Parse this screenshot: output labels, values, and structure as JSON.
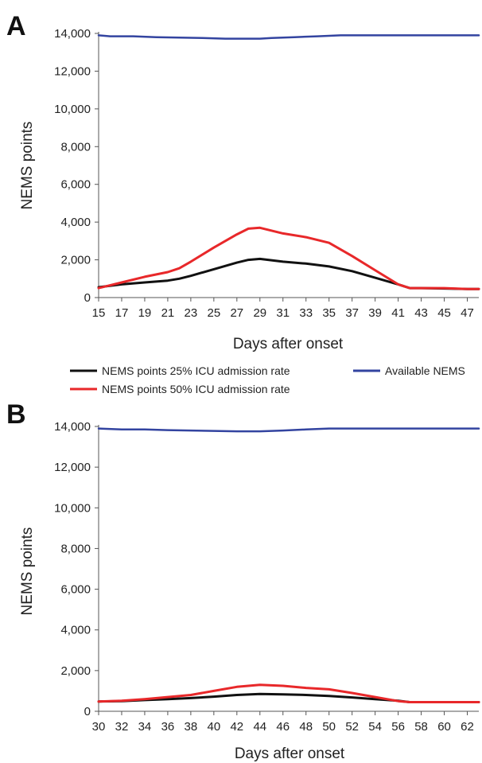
{
  "figure": {
    "legend": [
      {
        "label": "NEMS points 25% ICU admission rate",
        "color": "#111111"
      },
      {
        "label": "Available NEMS",
        "color": "#3344a0"
      },
      {
        "label": "NEMS points 50% ICU admission rate",
        "color": "#e8282a"
      }
    ]
  },
  "chart_data": [
    {
      "panel": "A",
      "type": "line",
      "xlabel": "Days after onset",
      "ylabel": "NEMS points",
      "xlim": [
        15,
        48
      ],
      "ylim": [
        0,
        14000
      ],
      "xticks": [
        "15",
        "17",
        "19",
        "21",
        "23",
        "25",
        "27",
        "29",
        "31",
        "33",
        "35",
        "37",
        "39",
        "41",
        "43",
        "45",
        "47"
      ],
      "yticks": [
        "0",
        "2,000",
        "4,000",
        "6,000",
        "8,000",
        "10,000",
        "12,000",
        "14,000"
      ],
      "yticks_values": [
        0,
        2000,
        4000,
        6000,
        8000,
        10000,
        12000,
        14000
      ],
      "grid": false,
      "series": [
        {
          "name": "Available NEMS",
          "color": "#3344a0",
          "x": [
            15,
            16,
            18,
            20,
            22,
            24,
            26,
            28,
            29,
            30,
            32,
            34,
            36,
            38,
            40,
            42,
            44,
            46,
            48
          ],
          "y": [
            13900,
            13850,
            13850,
            13800,
            13780,
            13760,
            13720,
            13720,
            13720,
            13760,
            13800,
            13850,
            13900,
            13900,
            13900,
            13900,
            13900,
            13900,
            13900
          ]
        },
        {
          "name": "NEMS points 25% ICU admission rate",
          "color": "#111111",
          "x": [
            15,
            17,
            19,
            21,
            22,
            23,
            25,
            27,
            28,
            29,
            31,
            33,
            35,
            37,
            39,
            41,
            42,
            43,
            45,
            47,
            48
          ],
          "y": [
            550,
            700,
            800,
            900,
            1000,
            1150,
            1500,
            1850,
            2000,
            2050,
            1900,
            1800,
            1650,
            1400,
            1050,
            700,
            500,
            500,
            480,
            450,
            450
          ]
        },
        {
          "name": "NEMS points 50% ICU admission rate",
          "color": "#e8282a",
          "x": [
            15,
            17,
            19,
            21,
            22,
            23,
            25,
            27,
            28,
            29,
            31,
            33,
            35,
            37,
            39,
            41,
            42,
            43,
            45,
            47,
            48
          ],
          "y": [
            500,
            800,
            1100,
            1350,
            1550,
            1900,
            2650,
            3350,
            3650,
            3700,
            3400,
            3200,
            2900,
            2200,
            1450,
            700,
            500,
            500,
            500,
            450,
            450
          ]
        }
      ]
    },
    {
      "panel": "B",
      "type": "line",
      "xlabel": "Days after onset",
      "ylabel": "NEMS points",
      "xlim": [
        30,
        63
      ],
      "ylim": [
        0,
        14000
      ],
      "xticks": [
        "30",
        "32",
        "34",
        "36",
        "38",
        "40",
        "42",
        "44",
        "46",
        "48",
        "50",
        "52",
        "54",
        "56",
        "58",
        "60",
        "62"
      ],
      "yticks": [
        "0",
        "2,000",
        "4,000",
        "6,000",
        "8,000",
        "10,000",
        "12,000",
        "14,000"
      ],
      "yticks_values": [
        0,
        2000,
        4000,
        6000,
        8000,
        10000,
        12000,
        14000
      ],
      "grid": false,
      "series": [
        {
          "name": "Available NEMS",
          "color": "#3344a0",
          "x": [
            30,
            32,
            34,
            36,
            38,
            40,
            42,
            44,
            46,
            48,
            50,
            52,
            54,
            56,
            58,
            60,
            62,
            63
          ],
          "y": [
            13900,
            13850,
            13850,
            13820,
            13800,
            13780,
            13760,
            13760,
            13800,
            13850,
            13900,
            13900,
            13900,
            13900,
            13900,
            13900,
            13900,
            13900
          ]
        },
        {
          "name": "NEMS points 25% ICU admission rate",
          "color": "#111111",
          "x": [
            30,
            32,
            34,
            36,
            38,
            40,
            42,
            44,
            46,
            48,
            50,
            52,
            54,
            56,
            57,
            58,
            60,
            62,
            63
          ],
          "y": [
            480,
            500,
            550,
            600,
            650,
            720,
            800,
            850,
            830,
            800,
            750,
            680,
            600,
            520,
            450,
            450,
            450,
            450,
            450
          ]
        },
        {
          "name": "NEMS points 50% ICU admission rate",
          "color": "#e8282a",
          "x": [
            30,
            32,
            34,
            36,
            38,
            40,
            42,
            44,
            46,
            48,
            50,
            52,
            54,
            56,
            57,
            58,
            60,
            62,
            63
          ],
          "y": [
            480,
            520,
            600,
            700,
            800,
            1000,
            1200,
            1300,
            1250,
            1150,
            1080,
            900,
            700,
            500,
            450,
            450,
            450,
            450,
            450
          ]
        }
      ]
    }
  ]
}
